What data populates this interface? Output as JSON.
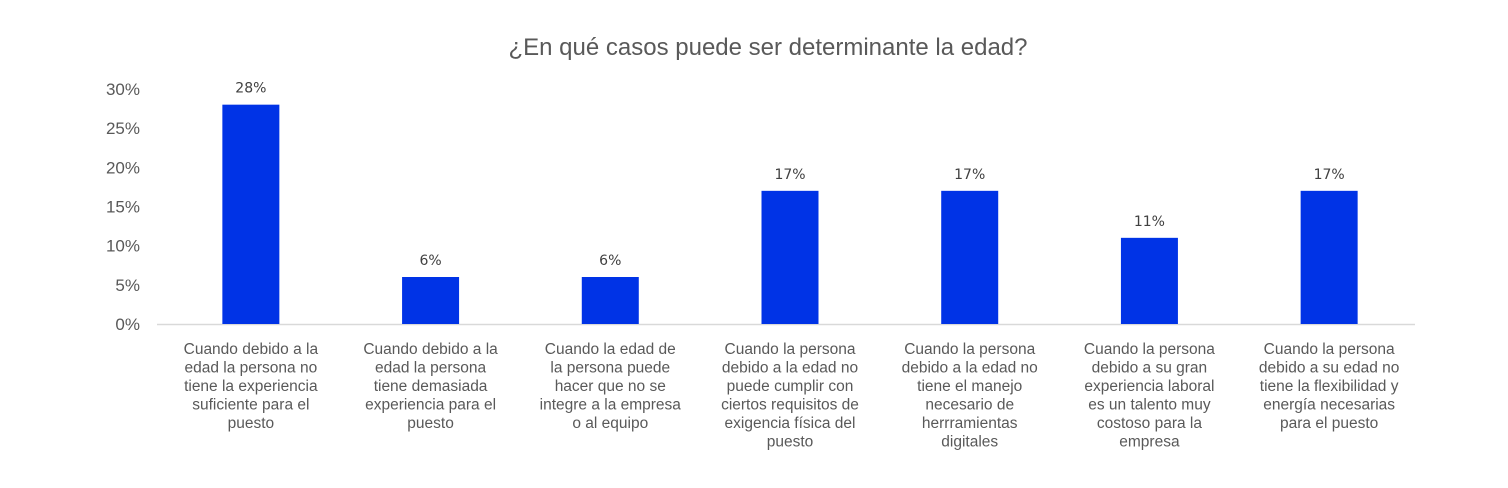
{
  "chart_data": {
    "type": "bar",
    "title": "¿En qué casos puede ser determinante la edad?",
    "xlabel": "",
    "ylabel": "",
    "ylim": [
      0,
      30
    ],
    "y_ticks": [
      0,
      5,
      10,
      15,
      20,
      25,
      30
    ],
    "y_tick_labels": [
      "0%",
      "5%",
      "10%",
      "15%",
      "20%",
      "25%",
      "30%"
    ],
    "grid": false,
    "legend": "none",
    "bar_color": "#0033E6",
    "categories": [
      [
        "Cuando debido a la",
        "edad la persona no",
        "tiene la experiencia",
        "suficiente para el",
        "puesto"
      ],
      [
        "Cuando debido a la",
        "edad la persona",
        "tiene demasiada",
        "experiencia para el",
        "puesto"
      ],
      [
        "Cuando la edad de",
        "la persona puede",
        "hacer que no se",
        "integre a la empresa",
        "o al equipo"
      ],
      [
        "Cuando la persona",
        "debido a la edad no",
        "puede cumplir con",
        "ciertos requisitos de",
        "exigencia física del",
        "puesto"
      ],
      [
        "Cuando la persona",
        "debido a la edad no",
        "tiene el manejo",
        "necesario de",
        "herrramientas",
        "digitales"
      ],
      [
        "Cuando la persona",
        "debido a su gran",
        "experiencia laboral",
        "es un talento muy",
        "costoso para la",
        "empresa"
      ],
      [
        "Cuando la persona",
        "debido a su edad no",
        "tiene la flexibilidad y",
        "energía necesarias",
        "para el puesto"
      ]
    ],
    "values": [
      28,
      6,
      6,
      17,
      17,
      11,
      17
    ],
    "data_labels": [
      "28%",
      "6%",
      "6%",
      "17%",
      "17%",
      "11%",
      "17%"
    ]
  }
}
